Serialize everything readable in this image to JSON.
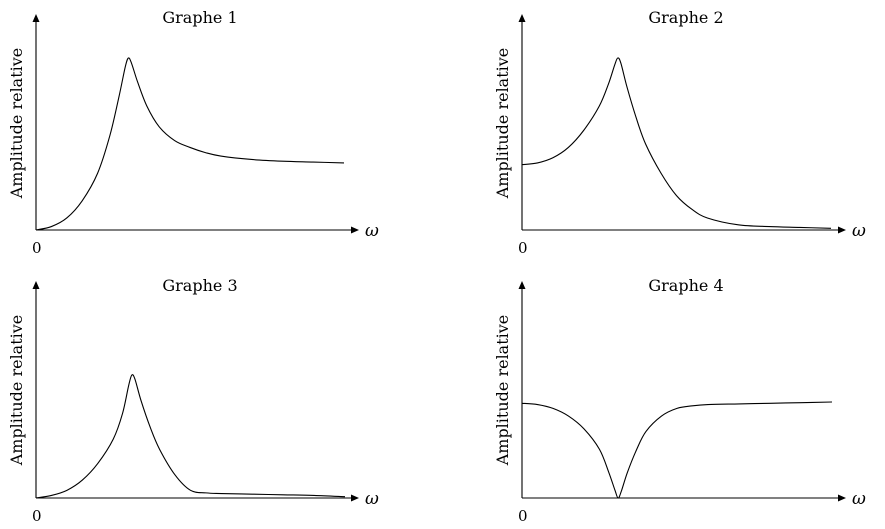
{
  "chart_data": [
    {
      "type": "line",
      "title": "Graphe 1",
      "xlabel": "ω",
      "ylabel": "Amplitude relative",
      "origin_label": "0",
      "xlim": [
        0,
        1
      ],
      "ylim": [
        0,
        1
      ],
      "grid": false,
      "series": [
        {
          "x": [
            0,
            0.05,
            0.1,
            0.15,
            0.2,
            0.24,
            0.27,
            0.29,
            0.3,
            0.31,
            0.33,
            0.36,
            0.4,
            0.45,
            0.5,
            0.55,
            0.6,
            0.7,
            0.8,
            0.9,
            1.0
          ],
          "y": [
            0,
            0.02,
            0.07,
            0.17,
            0.33,
            0.55,
            0.78,
            0.95,
            1.0,
            0.97,
            0.86,
            0.72,
            0.6,
            0.52,
            0.48,
            0.45,
            0.43,
            0.41,
            0.4,
            0.395,
            0.39
          ]
        }
      ]
    },
    {
      "type": "line",
      "title": "Graphe 2",
      "xlabel": "ω",
      "ylabel": "Amplitude relative",
      "origin_label": "0",
      "xlim": [
        0,
        1
      ],
      "ylim": [
        0,
        1
      ],
      "grid": false,
      "series": [
        {
          "x": [
            0,
            0.05,
            0.1,
            0.15,
            0.2,
            0.25,
            0.28,
            0.3,
            0.31,
            0.32,
            0.34,
            0.37,
            0.4,
            0.45,
            0.5,
            0.55,
            0.6,
            0.7,
            0.8,
            0.9,
            1.0
          ],
          "y": [
            0.38,
            0.39,
            0.42,
            0.48,
            0.58,
            0.72,
            0.85,
            0.96,
            1.0,
            0.97,
            0.83,
            0.65,
            0.5,
            0.33,
            0.2,
            0.12,
            0.07,
            0.03,
            0.02,
            0.015,
            0.01
          ]
        }
      ]
    },
    {
      "type": "line",
      "title": "Graphe 3",
      "xlabel": "ω",
      "ylabel": "Amplitude relative",
      "origin_label": "0",
      "xlim": [
        0,
        1
      ],
      "ylim": [
        0,
        1
      ],
      "grid": false,
      "series": [
        {
          "x": [
            0,
            0.05,
            0.1,
            0.15,
            0.2,
            0.25,
            0.28,
            0.3,
            0.31,
            0.32,
            0.34,
            0.37,
            0.4,
            0.45,
            0.5,
            0.55,
            0.6,
            0.7,
            0.8,
            0.9,
            1.0
          ],
          "y": [
            0,
            0.02,
            0.06,
            0.14,
            0.27,
            0.46,
            0.66,
            0.88,
            0.96,
            0.93,
            0.76,
            0.55,
            0.38,
            0.18,
            0.06,
            0.04,
            0.035,
            0.03,
            0.025,
            0.02,
            0.01
          ]
        }
      ]
    },
    {
      "type": "line",
      "title": "Graphe 4",
      "xlabel": "ω",
      "ylabel": "Amplitude relative",
      "origin_label": "0",
      "xlim": [
        0,
        1
      ],
      "ylim": [
        0,
        1
      ],
      "grid": false,
      "series": [
        {
          "x": [
            0,
            0.05,
            0.1,
            0.15,
            0.2,
            0.25,
            0.28,
            0.3,
            0.31,
            0.32,
            0.34,
            0.37,
            0.4,
            0.45,
            0.5,
            0.55,
            0.6,
            0.7,
            0.8,
            0.9,
            1.0
          ],
          "y": [
            0.74,
            0.73,
            0.7,
            0.64,
            0.54,
            0.38,
            0.2,
            0.06,
            0.0,
            0.05,
            0.2,
            0.38,
            0.52,
            0.64,
            0.7,
            0.72,
            0.73,
            0.735,
            0.74,
            0.745,
            0.75
          ]
        }
      ]
    }
  ]
}
